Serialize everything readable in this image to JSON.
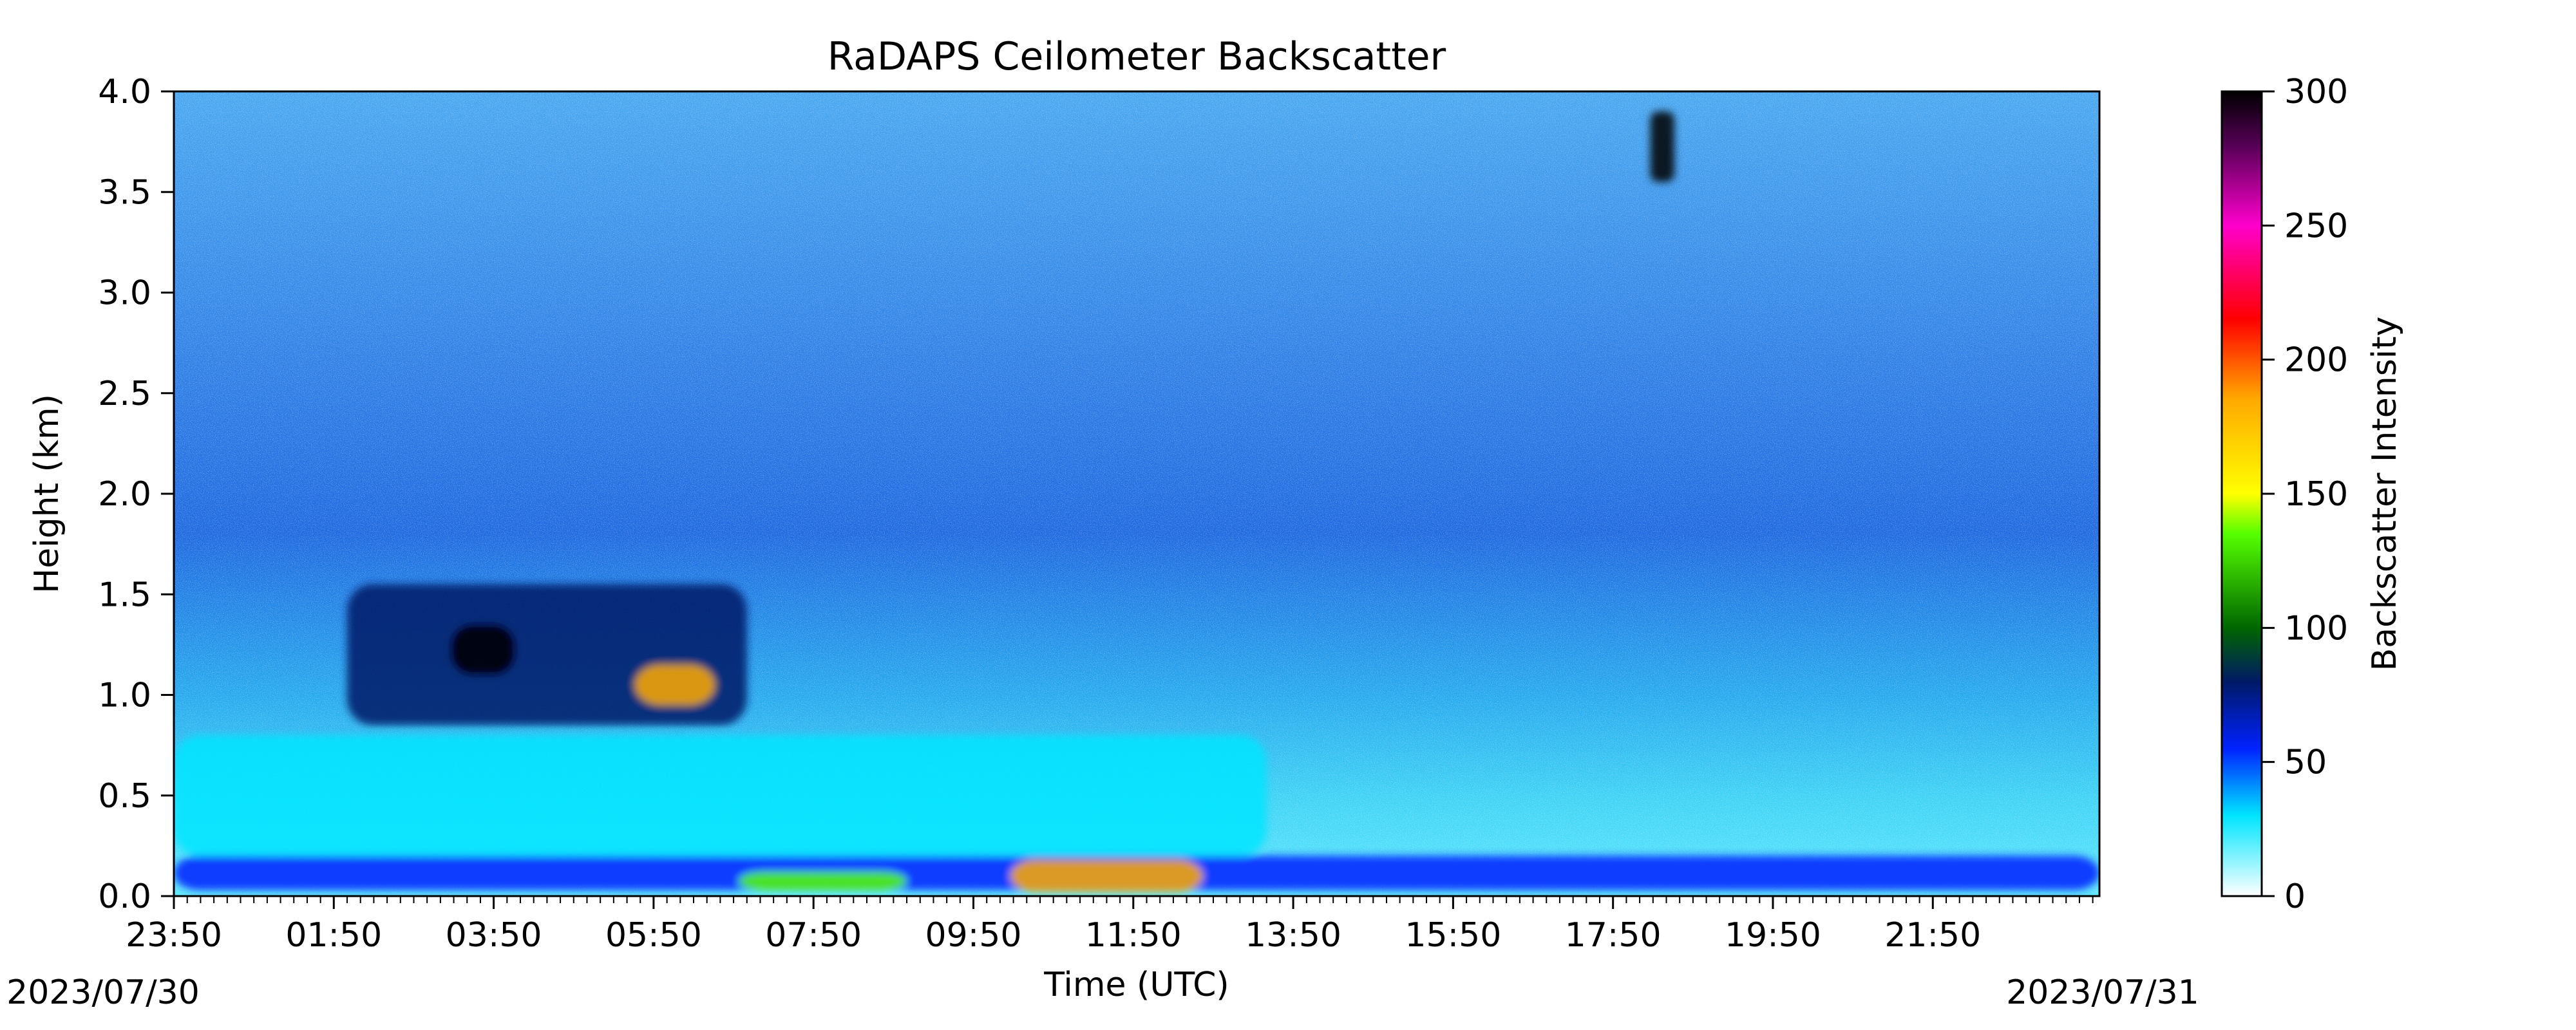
{
  "chart_data": {
    "type": "heatmap",
    "title": "RaDAPS Ceilometer Backscatter",
    "xlabel": "Time (UTC)",
    "ylabel": "Height (km)",
    "colorbar_label": "Backscatter Intensity",
    "date_start_label": "2023/07/30",
    "date_end_label": "2023/07/31",
    "x_start_hour": 23.833,
    "x_end_hour": 47.917,
    "x_major_tick_hours": [
      23.833,
      25.833,
      27.833,
      29.833,
      31.833,
      33.833,
      35.833,
      37.833,
      39.833,
      41.833,
      43.833,
      45.833
    ],
    "x_tick_labels": [
      "23:50",
      "01:50",
      "03:50",
      "05:50",
      "07:50",
      "09:50",
      "11:50",
      "13:50",
      "15:50",
      "17:50",
      "19:50",
      "21:50"
    ],
    "ylim": [
      0,
      4.0
    ],
    "y_ticks": [
      0.0,
      0.5,
      1.0,
      1.5,
      2.0,
      2.5,
      3.0,
      3.5,
      4.0
    ],
    "y_tick_labels": [
      "0.0",
      "0.5",
      "1.0",
      "1.5",
      "2.0",
      "2.5",
      "3.0",
      "3.5",
      "4.0"
    ],
    "colorbar_range": [
      0,
      300
    ],
    "colorbar_ticks": [
      0,
      50,
      100,
      150,
      200,
      250,
      300
    ],
    "colorbar_tick_labels": [
      "0",
      "50",
      "100",
      "150",
      "200",
      "250",
      "300"
    ],
    "colormap": [
      {
        "value": 0,
        "color": "#ffffff"
      },
      {
        "value": 30,
        "color": "#00e5ff"
      },
      {
        "value": 55,
        "color": "#0022ff"
      },
      {
        "value": 80,
        "color": "#001a66"
      },
      {
        "value": 100,
        "color": "#006600"
      },
      {
        "value": 135,
        "color": "#55ff00"
      },
      {
        "value": 150,
        "color": "#ffff00"
      },
      {
        "value": 185,
        "color": "#ffaa00"
      },
      {
        "value": 215,
        "color": "#ff0000"
      },
      {
        "value": 250,
        "color": "#ff00cc"
      },
      {
        "value": 280,
        "color": "#550055"
      },
      {
        "value": 300,
        "color": "#000000"
      }
    ],
    "features": [
      {
        "name": "boundary-layer",
        "t_start": 23.833,
        "t_end": 47.917,
        "h_bottom": 0.03,
        "h_top": 0.2,
        "intensity": 55
      },
      {
        "name": "aerosol-layer",
        "t_start": 23.833,
        "t_end": 37.5,
        "h_bottom": 0.2,
        "h_top": 0.8,
        "intensity": 28
      },
      {
        "name": "cloud-layer-early",
        "t_start": 26.0,
        "t_end": 31.0,
        "h_bottom": 0.85,
        "h_top": 1.55,
        "intensity": 75
      },
      {
        "name": "cloud-core",
        "t_start": 27.3,
        "t_end": 28.1,
        "h_bottom": 1.1,
        "h_top": 1.35,
        "intensity": 290
      },
      {
        "name": "cloud-patch",
        "t_start": 29.6,
        "t_end": 30.6,
        "h_bottom": 0.95,
        "h_top": 1.15,
        "intensity": 160
      },
      {
        "name": "surface-echo-1",
        "t_start": 30.9,
        "t_end": 33.0,
        "h_bottom": 0.03,
        "h_top": 0.12,
        "intensity": 120
      },
      {
        "name": "surface-echo-2",
        "t_start": 34.3,
        "t_end": 36.7,
        "h_bottom": 0.02,
        "h_top": 0.18,
        "intensity": 175
      },
      {
        "name": "high-cloud",
        "t_start": 42.3,
        "t_end": 42.6,
        "h_bottom": 3.55,
        "h_top": 3.9,
        "intensity": 300
      }
    ]
  }
}
